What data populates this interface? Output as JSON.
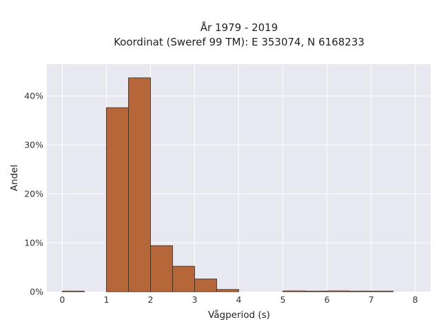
{
  "chart_data": {
    "type": "bar",
    "title": "År 1979 - 2019",
    "subtitle": "Koordinat (Sweref 99 TM): E 353074, N 6168233",
    "xlabel": "Vågperiod (s)",
    "ylabel": "Andel",
    "x_ticks": [
      "0",
      "1",
      "2",
      "3",
      "4",
      "5",
      "6",
      "7",
      "8"
    ],
    "y_ticks": [
      "0%",
      "10%",
      "20%",
      "30%",
      "40%"
    ],
    "xlim": [
      -0.35,
      8.35
    ],
    "ylim": [
      0,
      46.5
    ],
    "x_tick_values": [
      0,
      1,
      2,
      3,
      4,
      5,
      6,
      7,
      8
    ],
    "y_tick_values": [
      0,
      10,
      20,
      30,
      40
    ],
    "grid": true,
    "bin_width": 0.5,
    "bins": [
      {
        "start": 0.0,
        "value": 0.05
      },
      {
        "start": 0.5,
        "value": 0.0
      },
      {
        "start": 1.0,
        "value": 37.6
      },
      {
        "start": 1.5,
        "value": 43.7
      },
      {
        "start": 2.0,
        "value": 9.4
      },
      {
        "start": 2.5,
        "value": 5.2
      },
      {
        "start": 3.0,
        "value": 2.6
      },
      {
        "start": 3.5,
        "value": 0.45
      },
      {
        "start": 4.0,
        "value": 0.0
      },
      {
        "start": 4.5,
        "value": 0.0
      },
      {
        "start": 5.0,
        "value": 0.15
      },
      {
        "start": 5.5,
        "value": 0.1
      },
      {
        "start": 6.0,
        "value": 0.15
      },
      {
        "start": 6.5,
        "value": 0.05
      },
      {
        "start": 7.0,
        "value": 0.05
      },
      {
        "start": 7.5,
        "value": 0.0
      }
    ],
    "colors": {
      "bar_fill": "#b5673a",
      "bar_stroke": "#3a2418",
      "plot_bg": "#e8e8f0",
      "grid": "#ffffff"
    }
  }
}
